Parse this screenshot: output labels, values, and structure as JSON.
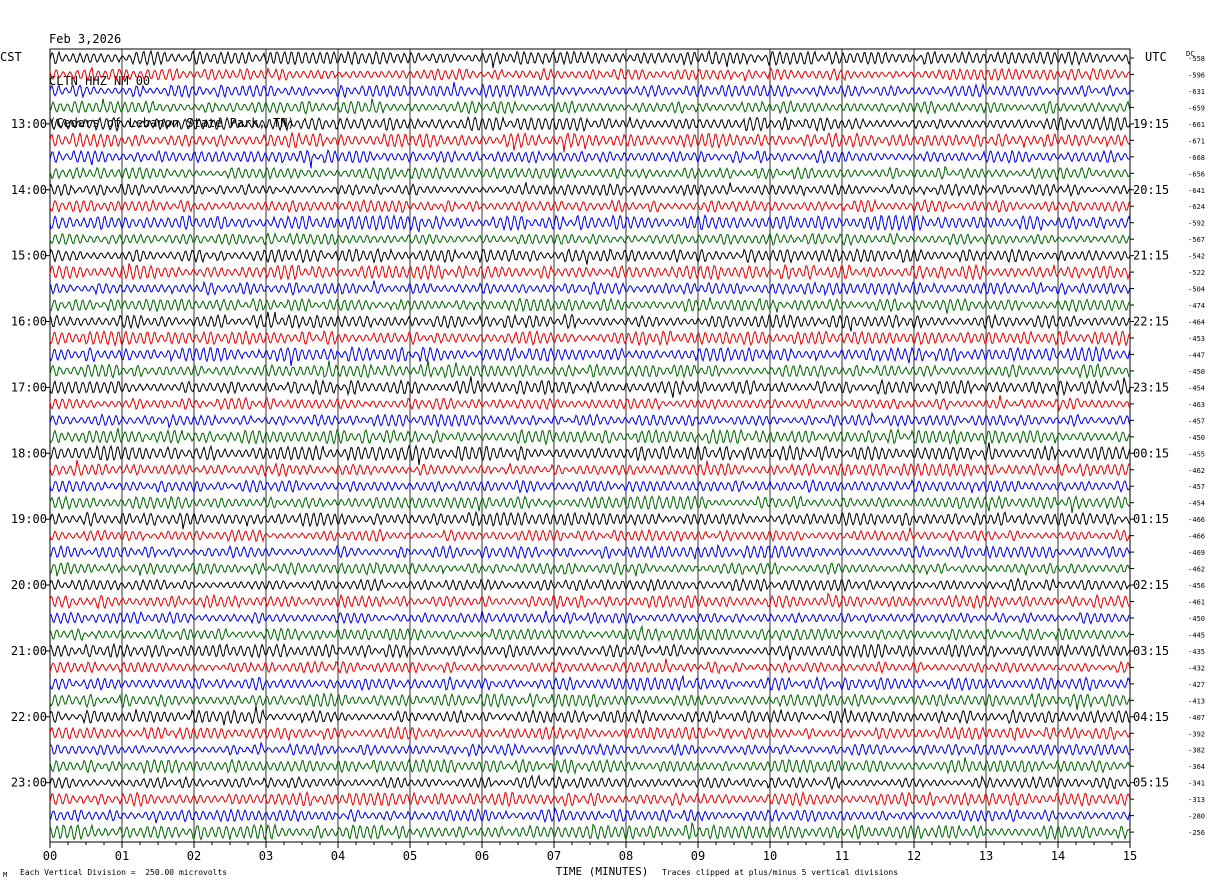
{
  "header": {
    "date": "Feb 3,2026",
    "station": "CLTN HHZ NM 00",
    "site": "(Cedars of Lebanon State Park, TN)"
  },
  "left_tz": "CST",
  "right_tz": "UTC",
  "dc_label": "DC",
  "footer": {
    "scale_note": "Each Vertical Division =  250.00 microvolts",
    "clip_note": "Traces clipped at plus/minus 5 vertical divisions",
    "corner_mark": "M"
  },
  "chart_data": {
    "type": "line",
    "title": "",
    "xlabel": "TIME (MINUTES)",
    "x_ticks": [
      "00",
      "01",
      "02",
      "03",
      "04",
      "05",
      "06",
      "07",
      "08",
      "09",
      "10",
      "11",
      "12",
      "13",
      "14",
      "15"
    ],
    "xlim": [
      0,
      15
    ],
    "left_hour_labels": [
      "13:00",
      "14:00",
      "15:00",
      "16:00",
      "17:00",
      "18:00",
      "19:00",
      "20:00",
      "21:00",
      "22:00",
      "23:00"
    ],
    "right_hour_labels": [
      "19:15",
      "20:15",
      "21:15",
      "22:15",
      "23:15",
      "00:15",
      "01:15",
      "02:15",
      "03:15",
      "04:15",
      "05:15"
    ],
    "dc_offsets": [
      "-558",
      "-596",
      "-631",
      "-659",
      "-661",
      "-671",
      "-668",
      "-656",
      "-641",
      "-624",
      "-592",
      "-567",
      "-542",
      "-522",
      "-504",
      "-474",
      "-464",
      "-453",
      "-447",
      "-450",
      "-454",
      "-463",
      "-457",
      "-450",
      "-455",
      "-462",
      "-457",
      "-454",
      "-466",
      "-466",
      "-469",
      "-462",
      "-456",
      "-461",
      "-450",
      "-445",
      "-435",
      "-432",
      "-427",
      "-413",
      "-407",
      "-392",
      "-382",
      "-364",
      "-341",
      "-313",
      "-280",
      "-256"
    ],
    "trace_colors": [
      "#000000",
      "#e60000",
      "#0000e6",
      "#006600"
    ],
    "grid": "vertical lines each minute"
  }
}
